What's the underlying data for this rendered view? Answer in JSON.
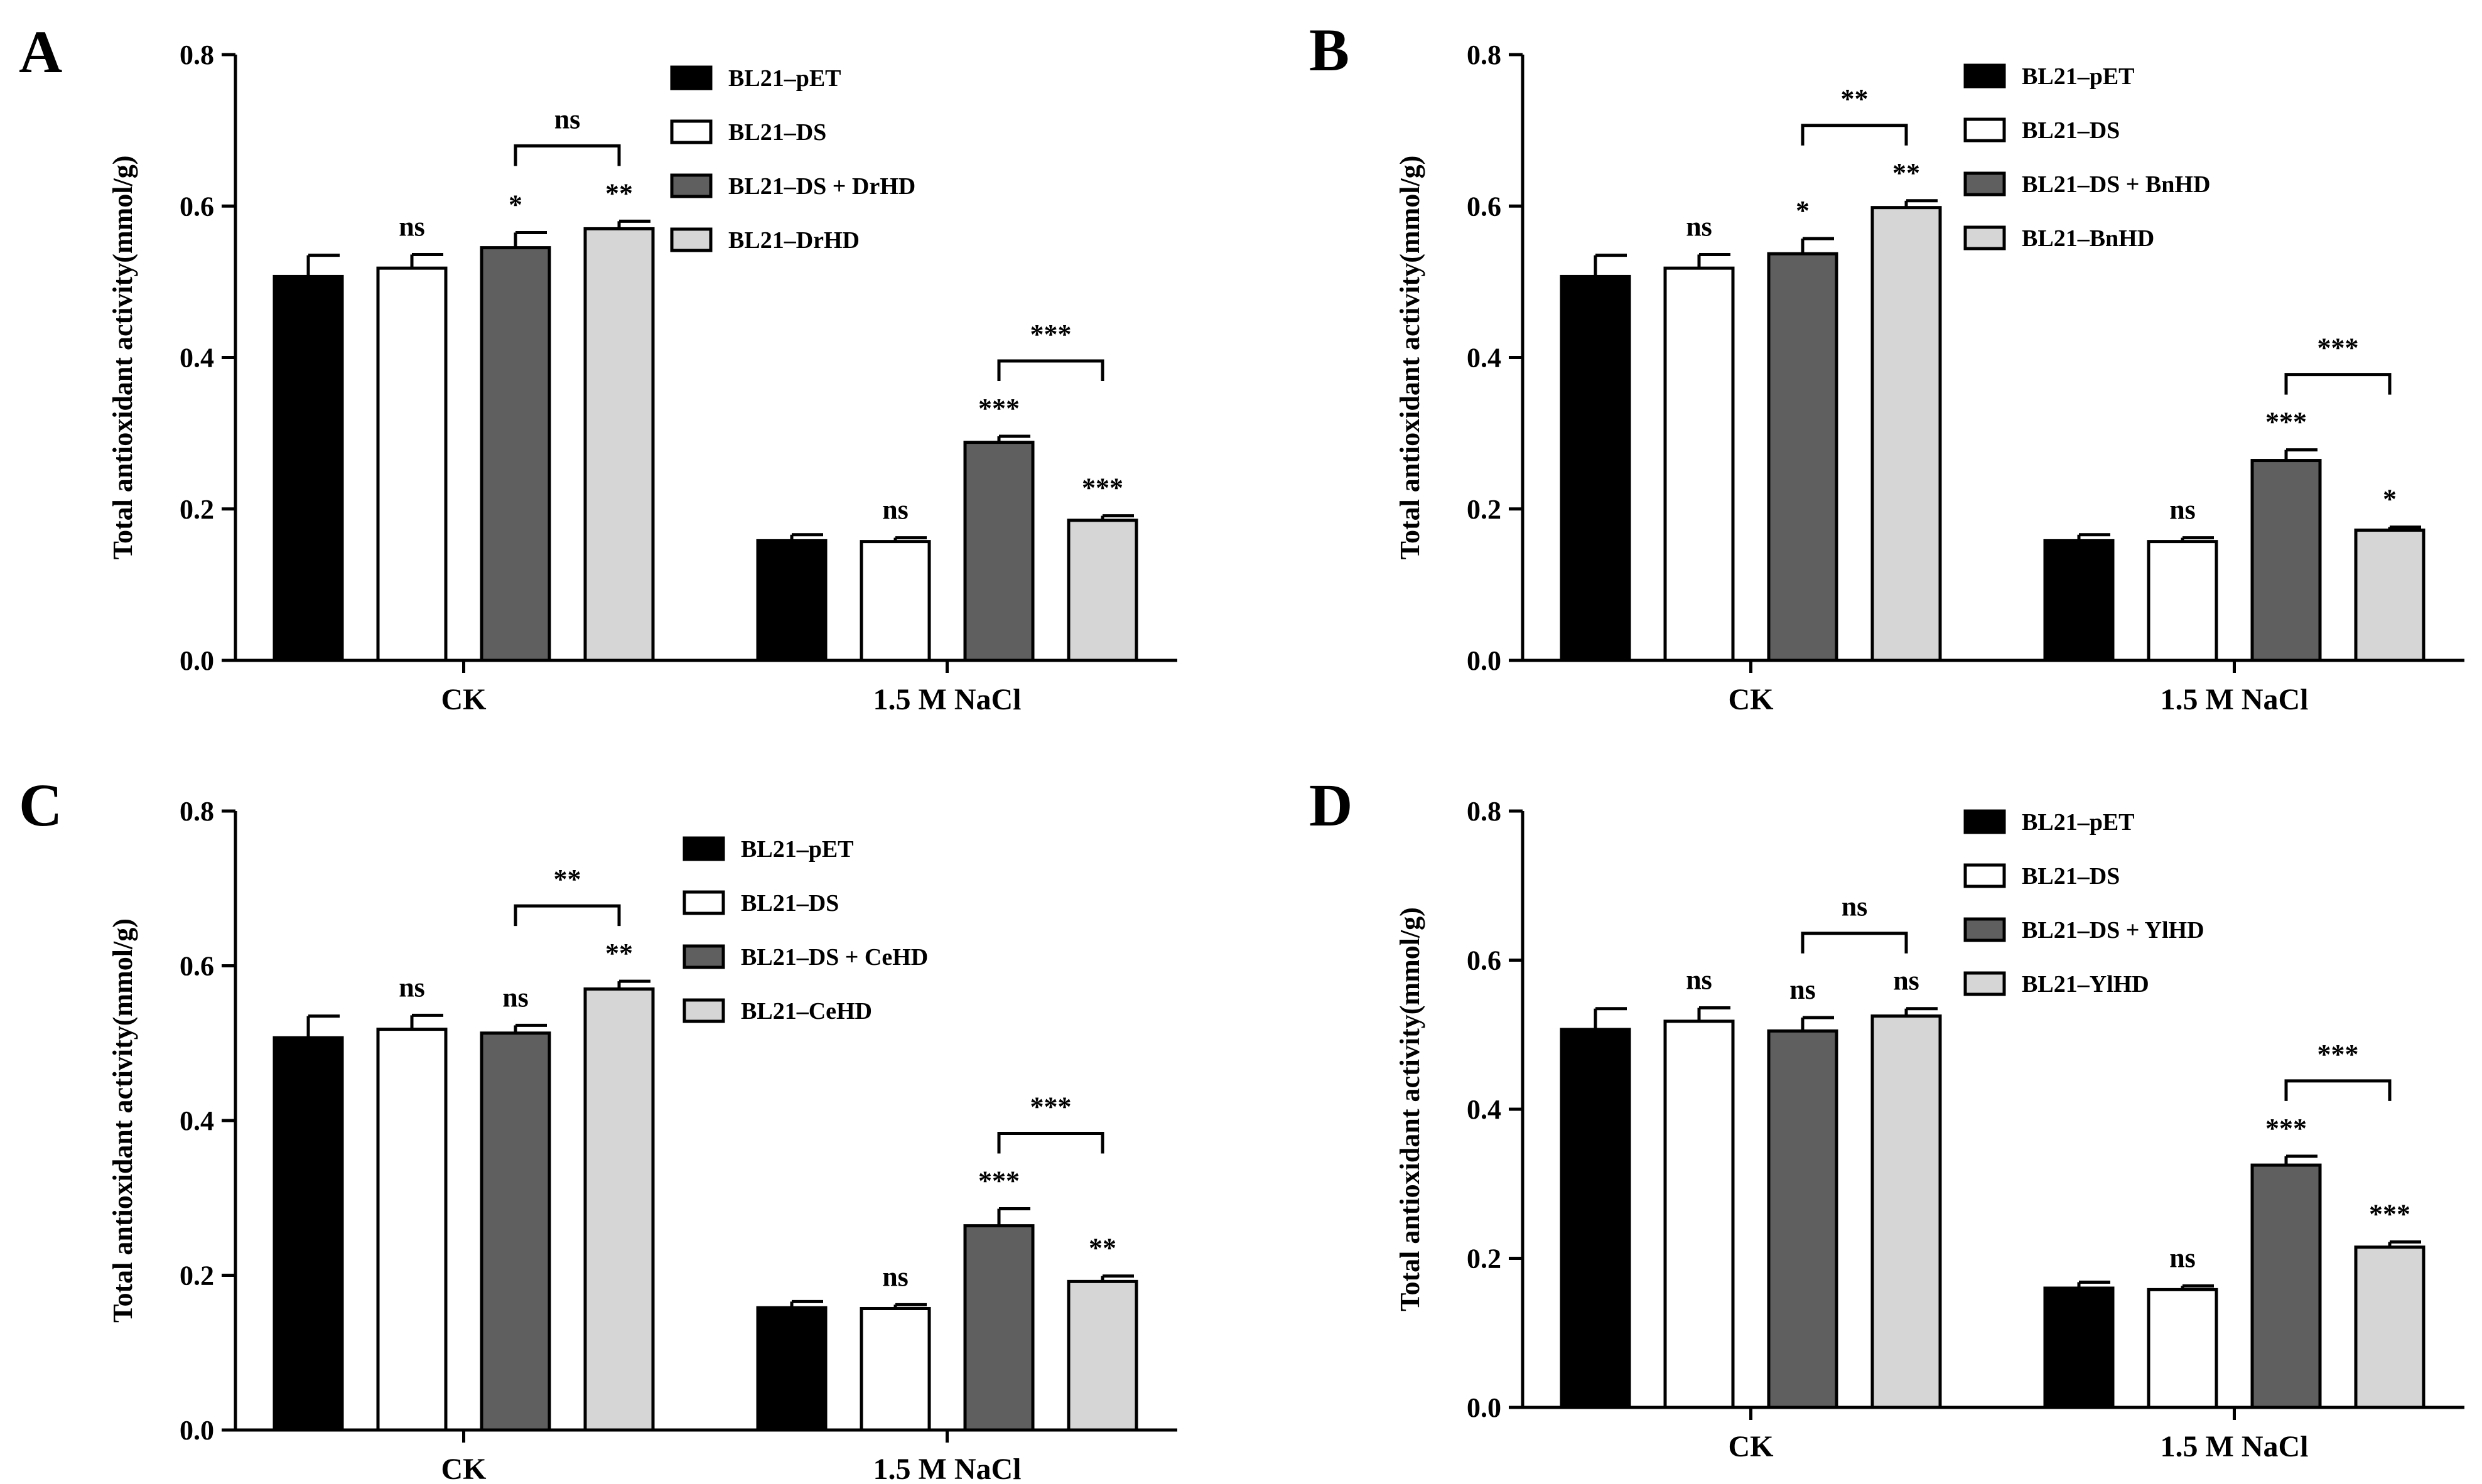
{
  "chart_data": [
    {
      "type": "bar",
      "panel_label": "A",
      "ylabel": "Total antioxidant activity(mmol/g)",
      "ylim": [
        0,
        0.8
      ],
      "yticks": [
        "0.0",
        "0.2",
        "0.4",
        "0.6",
        "0.8"
      ],
      "categories": [
        "CK",
        "1.5 M NaCl"
      ],
      "series": [
        {
          "name": "BL21–pET",
          "values": [
            0.507,
            0.158
          ],
          "errors": [
            0.028,
            0.008
          ],
          "sig": [
            "",
            ""
          ]
        },
        {
          "name": "BL21–DS",
          "values": [
            0.518,
            0.157
          ],
          "errors": [
            0.018,
            0.005
          ],
          "sig": [
            "ns",
            "ns"
          ]
        },
        {
          "name": "BL21–DS + DrHD",
          "values": [
            0.545,
            0.288
          ],
          "errors": [
            0.02,
            0.008
          ],
          "sig": [
            "*",
            "***"
          ]
        },
        {
          "name": "BL21–DrHD",
          "values": [
            0.57,
            0.185
          ],
          "errors": [
            0.01,
            0.006
          ],
          "sig": [
            "**",
            "***"
          ]
        }
      ],
      "brackets": [
        "ns",
        "***"
      ]
    },
    {
      "type": "bar",
      "panel_label": "B",
      "ylabel": "Total antioxidant activity(mmol/g)",
      "ylim": [
        0,
        0.8
      ],
      "yticks": [
        "0.0",
        "0.2",
        "0.4",
        "0.6",
        "0.8"
      ],
      "categories": [
        "CK",
        "1.5 M NaCl"
      ],
      "series": [
        {
          "name": "BL21–pET",
          "values": [
            0.507,
            0.158
          ],
          "errors": [
            0.028,
            0.008
          ],
          "sig": [
            "",
            ""
          ]
        },
        {
          "name": "BL21–DS",
          "values": [
            0.518,
            0.157
          ],
          "errors": [
            0.018,
            0.005
          ],
          "sig": [
            "ns",
            "ns"
          ]
        },
        {
          "name": "BL21–DS + BnHD",
          "values": [
            0.537,
            0.264
          ],
          "errors": [
            0.02,
            0.014
          ],
          "sig": [
            "*",
            "***"
          ]
        },
        {
          "name": "BL21–BnHD",
          "values": [
            0.598,
            0.172
          ],
          "errors": [
            0.009,
            0.004
          ],
          "sig": [
            "**",
            "*"
          ]
        }
      ],
      "brackets": [
        "**",
        "***"
      ]
    },
    {
      "type": "bar",
      "panel_label": "C",
      "ylabel": "Total antioxidant activity(mmol/g)",
      "ylim": [
        0,
        0.8
      ],
      "yticks": [
        "0.0",
        "0.2",
        "0.4",
        "0.6",
        "0.8"
      ],
      "categories": [
        "CK",
        "1.5 M NaCl"
      ],
      "series": [
        {
          "name": "BL21–pET",
          "values": [
            0.507,
            0.158
          ],
          "errors": [
            0.028,
            0.008
          ],
          "sig": [
            "",
            ""
          ]
        },
        {
          "name": "BL21–DS",
          "values": [
            0.518,
            0.157
          ],
          "errors": [
            0.018,
            0.005
          ],
          "sig": [
            "ns",
            "ns"
          ]
        },
        {
          "name": "BL21–DS + CeHD",
          "values": [
            0.513,
            0.264
          ],
          "errors": [
            0.01,
            0.022
          ],
          "sig": [
            "ns",
            "***"
          ]
        },
        {
          "name": "BL21–CeHD",
          "values": [
            0.57,
            0.192
          ],
          "errors": [
            0.01,
            0.007
          ],
          "sig": [
            "**",
            "**"
          ]
        }
      ],
      "brackets": [
        "**",
        "***"
      ]
    },
    {
      "type": "bar",
      "panel_label": "D",
      "ylabel": "Total antioxidant activity(mmol/g)",
      "ylim": [
        0,
        0.8
      ],
      "yticks": [
        "0.0",
        "0.2",
        "0.4",
        "0.6",
        "0.8"
      ],
      "categories": [
        "CK",
        "1.5 M NaCl"
      ],
      "series": [
        {
          "name": "BL21–pET",
          "values": [
            0.507,
            0.16
          ],
          "errors": [
            0.028,
            0.008
          ],
          "sig": [
            "",
            ""
          ]
        },
        {
          "name": "BL21–DS",
          "values": [
            0.518,
            0.158
          ],
          "errors": [
            0.018,
            0.005
          ],
          "sig": [
            "ns",
            "ns"
          ]
        },
        {
          "name": "BL21–DS + YlHD",
          "values": [
            0.505,
            0.325
          ],
          "errors": [
            0.018,
            0.012
          ],
          "sig": [
            "ns",
            "***"
          ]
        },
        {
          "name": "BL21–YlHD",
          "values": [
            0.525,
            0.215
          ],
          "errors": [
            0.01,
            0.007
          ],
          "sig": [
            "ns",
            "***"
          ]
        }
      ],
      "brackets": [
        "ns",
        "***"
      ]
    }
  ],
  "colors": {
    "series_fills": [
      "#000000",
      "#ffffff",
      "#5f5f5f",
      "#d6d6d6"
    ],
    "stroke": "#000000"
  }
}
